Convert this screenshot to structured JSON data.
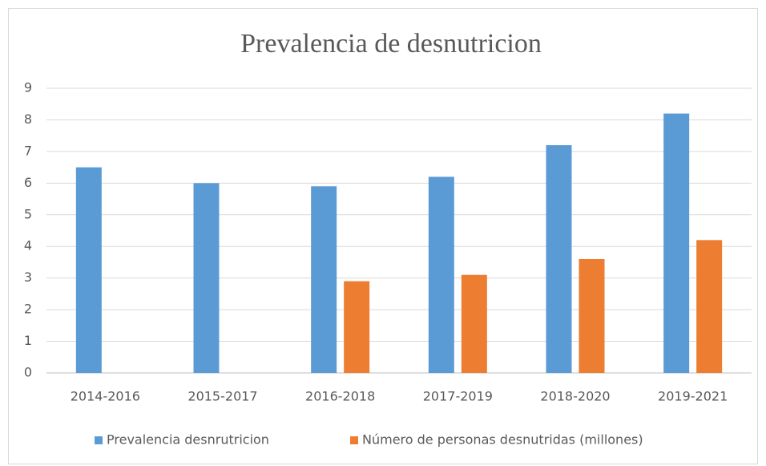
{
  "chart_data": {
    "type": "bar",
    "title": "Prevalencia  de desnutricion",
    "categories": [
      "2014-2016",
      "2015-2017",
      "2016-2018",
      "2017-2019",
      "2018-2020",
      "2019-2021"
    ],
    "series": [
      {
        "name": "Prevalencia desnrutricion",
        "color": "#5b9bd5",
        "values": [
          6.5,
          6.0,
          5.9,
          6.2,
          7.2,
          8.2
        ]
      },
      {
        "name": "Número de personas desnutridas (millones)",
        "color": "#ed7d31",
        "values": [
          null,
          null,
          2.9,
          3.1,
          3.6,
          4.2
        ]
      }
    ],
    "ylim": [
      0,
      9
    ],
    "yticks": [
      0,
      1,
      2,
      3,
      4,
      5,
      6,
      7,
      8,
      9
    ],
    "grid": true,
    "legend": "bottom"
  }
}
